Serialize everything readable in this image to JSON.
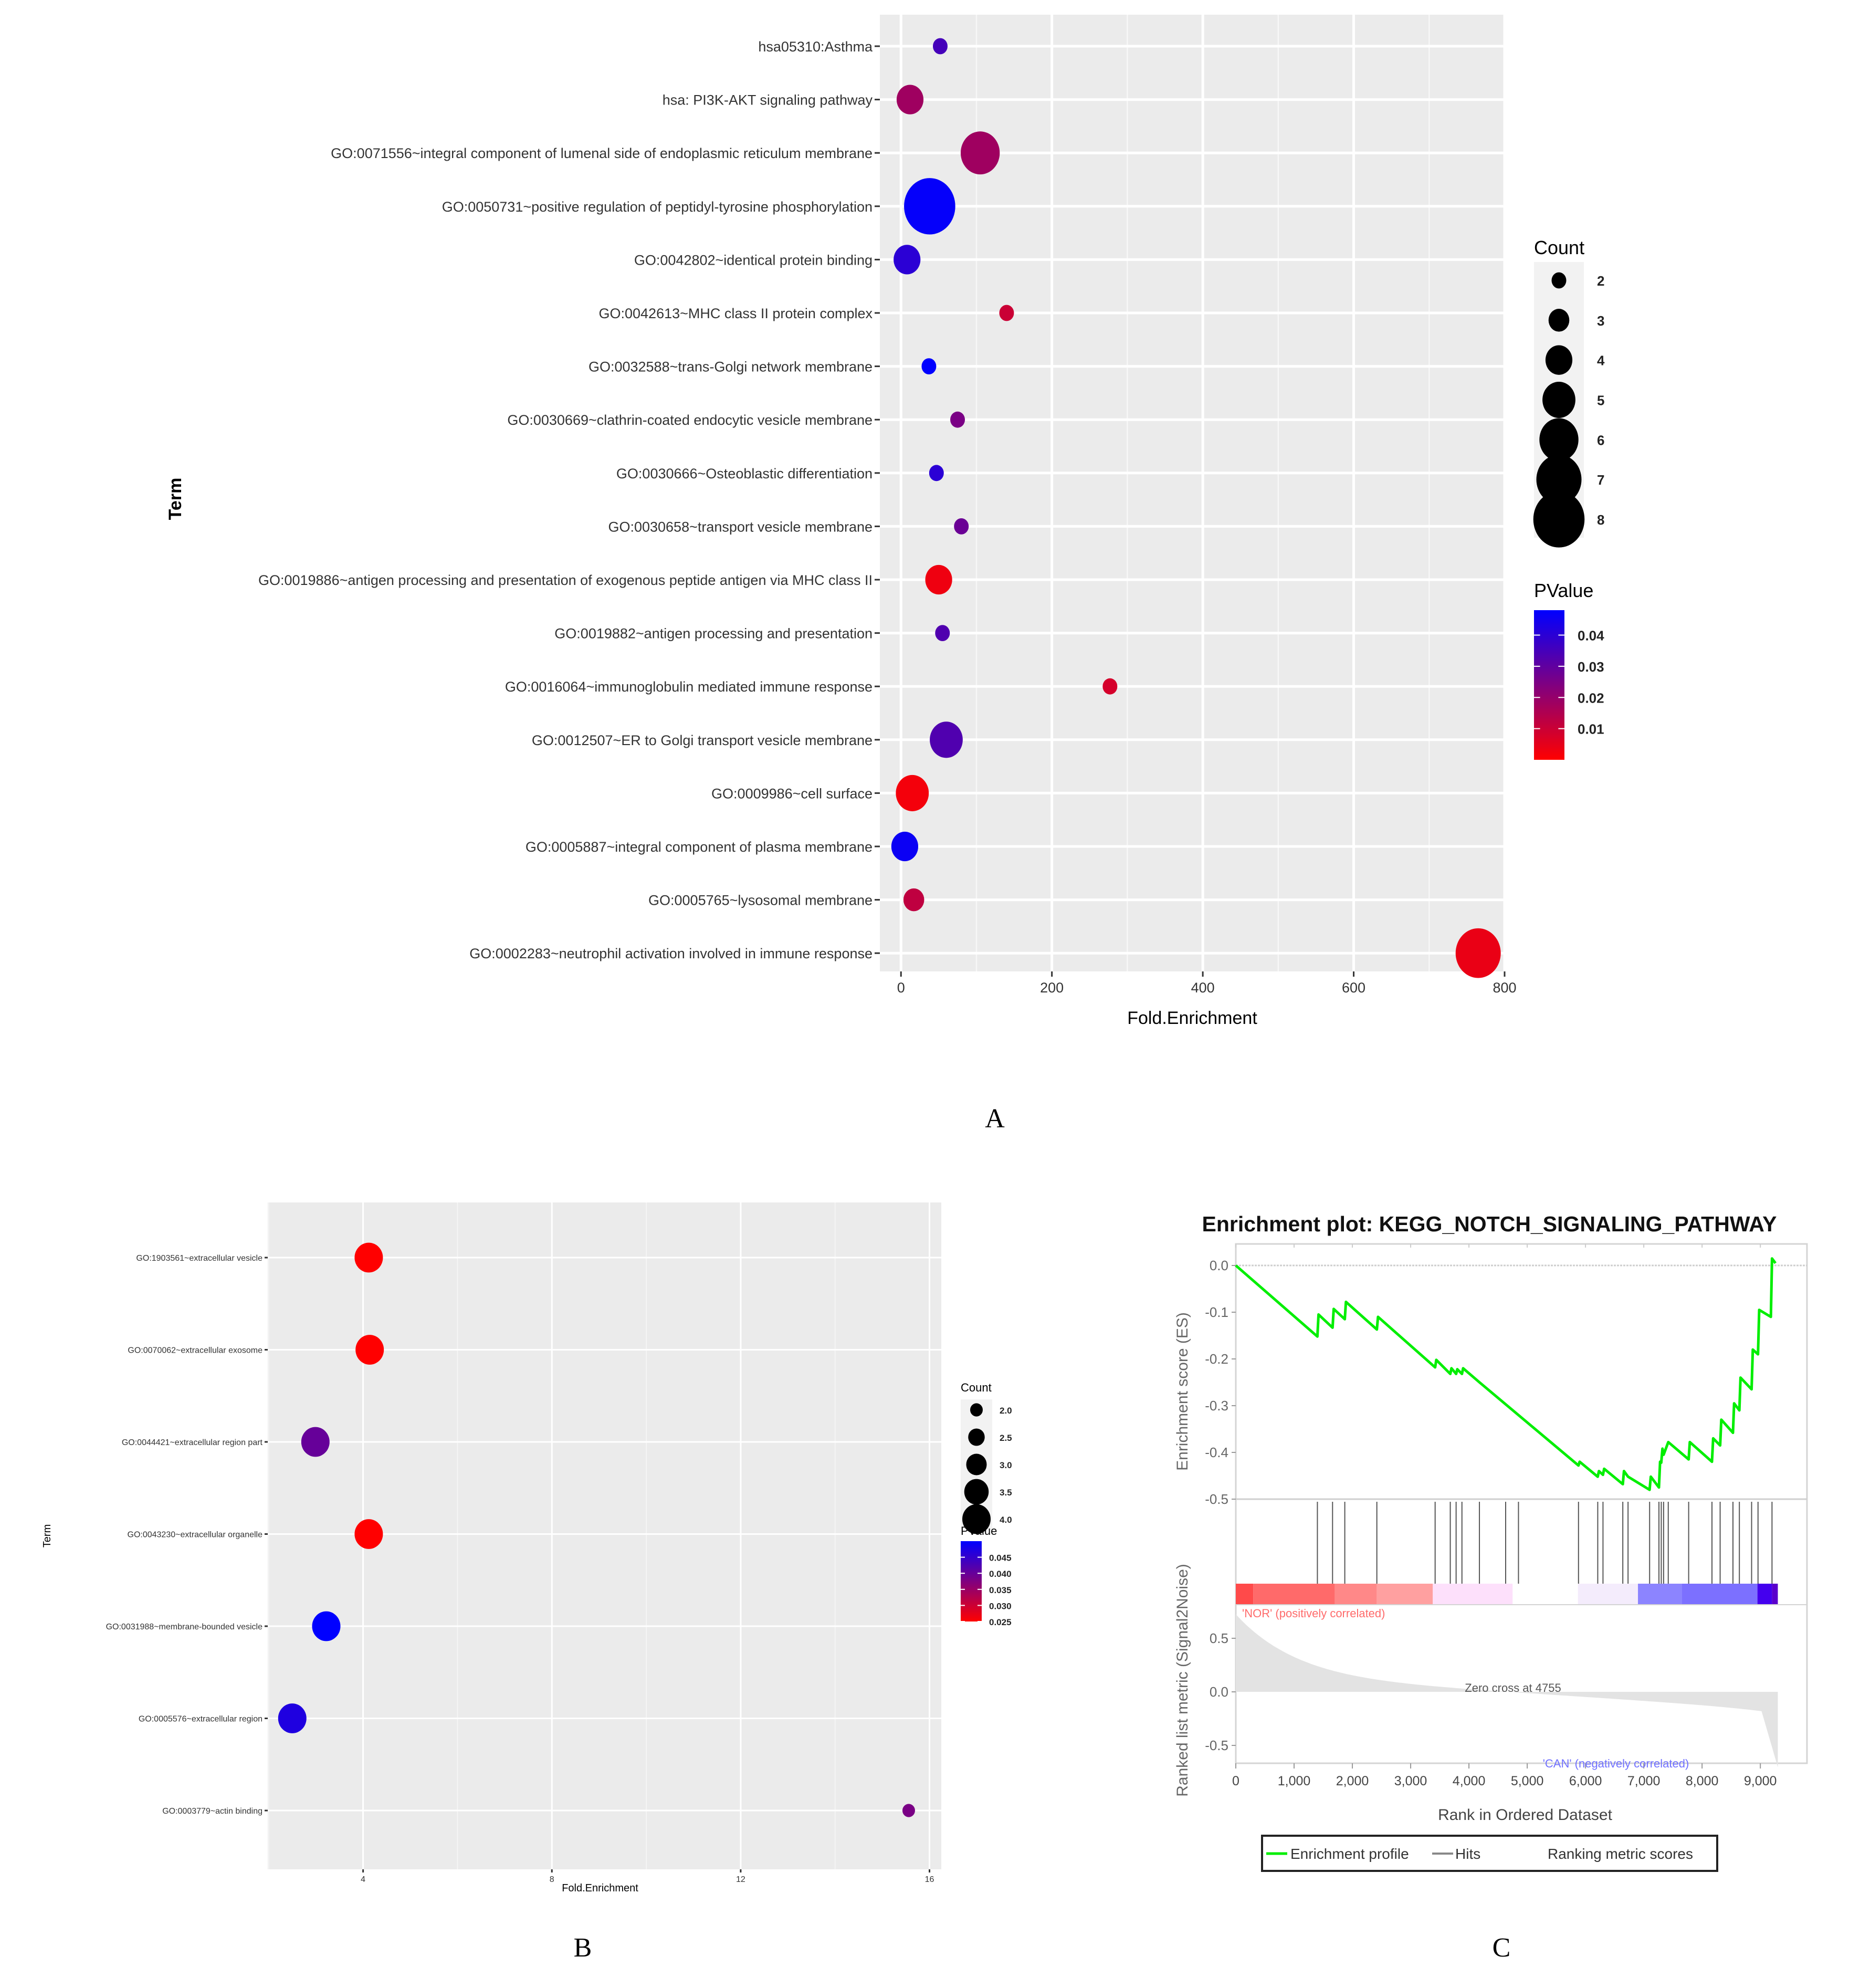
{
  "panel_labels": {
    "a": "A",
    "b": "B",
    "c": "C"
  },
  "chart_data": [
    {
      "id": "A",
      "type": "scatter",
      "subtype": "bubble",
      "title": "",
      "xlabel": "Fold.Enrichment",
      "ylabel": "Term",
      "xlim": [
        -28,
        800
      ],
      "xticks": [
        0,
        200,
        400,
        600,
        800
      ],
      "grid": true,
      "points": [
        {
          "term": "hsa05310:Asthma",
          "fold_enrichment": 52,
          "count": 2,
          "pvalue": 0.035
        },
        {
          "term": "hsa: PI3K-AKT signaling pathway",
          "fold_enrichment": 12,
          "count": 4,
          "pvalue": 0.018
        },
        {
          "term": "GO:0071556~integral component of lumenal side of endoplasmic reticulum membrane",
          "fold_enrichment": 105,
          "count": 6,
          "pvalue": 0.018
        },
        {
          "term": "GO:0050731~positive regulation of peptidyl-tyrosine phosphorylation",
          "fold_enrichment": 38,
          "count": 8,
          "pvalue": 0.047
        },
        {
          "term": "GO:0042802~identical protein binding",
          "fold_enrichment": 8,
          "count": 4,
          "pvalue": 0.04
        },
        {
          "term": "GO:0042613~MHC class II protein complex",
          "fold_enrichment": 140,
          "count": 2,
          "pvalue": 0.01
        },
        {
          "term": "GO:0032588~trans-Golgi network membrane",
          "fold_enrichment": 37,
          "count": 2,
          "pvalue": 0.048
        },
        {
          "term": "GO:0030669~clathrin-coated endocytic vesicle membrane",
          "fold_enrichment": 75,
          "count": 2,
          "pvalue": 0.025
        },
        {
          "term": "GO:0030666~Osteoblastic differentiation",
          "fold_enrichment": 47,
          "count": 2,
          "pvalue": 0.04
        },
        {
          "term": "GO:0030658~transport vesicle membrane",
          "fold_enrichment": 80,
          "count": 2,
          "pvalue": 0.028
        },
        {
          "term": "GO:0019886~antigen processing and presentation of exogenous peptide antigen via MHC class II",
          "fold_enrichment": 50,
          "count": 4,
          "pvalue": 0.003
        },
        {
          "term": "GO:0019882~antigen processing and presentation",
          "fold_enrichment": 55,
          "count": 2,
          "pvalue": 0.033
        },
        {
          "term": "GO:0016064~immunoglobulin mediated immune response",
          "fold_enrichment": 277,
          "count": 2,
          "pvalue": 0.008
        },
        {
          "term": "GO:0012507~ER to Golgi transport vesicle membrane",
          "fold_enrichment": 60,
          "count": 5,
          "pvalue": 0.033
        },
        {
          "term": "GO:0009986~cell surface",
          "fold_enrichment": 15,
          "count": 5,
          "pvalue": 0.002
        },
        {
          "term": "GO:0005887~integral component of plasma membrane",
          "fold_enrichment": 5,
          "count": 4,
          "pvalue": 0.046
        },
        {
          "term": "GO:0005765~lysosomal membrane",
          "fold_enrichment": 17,
          "count": 3,
          "pvalue": 0.012
        },
        {
          "term": "GO:0002283~neutrophil activation involved in immune response",
          "fold_enrichment": 765,
          "count": 7,
          "pvalue": 0.004
        }
      ],
      "legend": {
        "placement": "right",
        "size_title": "Count",
        "size_values": [
          2,
          3,
          4,
          5,
          6,
          7,
          8
        ],
        "color_title": "PValue",
        "color_range": [
          0.0,
          0.048
        ],
        "color_ticks": [
          0.04,
          0.03,
          0.02,
          0.01
        ],
        "color_low": "#ff0000",
        "color_high": "#0000ff"
      },
      "colors": {
        "panel_bg": "#ebebeb",
        "grid": "#ffffff"
      }
    },
    {
      "id": "B",
      "type": "scatter",
      "subtype": "bubble",
      "title": "",
      "xlabel": "Fold.Enrichment",
      "ylabel": "Term",
      "xlim": [
        1.98,
        16.25
      ],
      "xticks": [
        4,
        8,
        12,
        16
      ],
      "grid": true,
      "points": [
        {
          "term": "GO:1903561~extracellular vesicle",
          "fold_enrichment": 4.12,
          "count": 4,
          "pvalue": 0.025
        },
        {
          "term": "GO:0070062~extracellular exosome",
          "fold_enrichment": 4.14,
          "count": 4,
          "pvalue": 0.025
        },
        {
          "term": "GO:0044421~extracellular region part",
          "fold_enrichment": 2.99,
          "count": 4,
          "pvalue": 0.04
        },
        {
          "term": "GO:0043230~extracellular organelle",
          "fold_enrichment": 4.12,
          "count": 4,
          "pvalue": 0.025
        },
        {
          "term": "GO:0031988~membrane-bounded vesicle",
          "fold_enrichment": 3.22,
          "count": 4,
          "pvalue": 0.05
        },
        {
          "term": "GO:0005576~extracellular region",
          "fold_enrichment": 2.5,
          "count": 4,
          "pvalue": 0.047
        },
        {
          "term": "GO:0003779~actin binding",
          "fold_enrichment": 15.56,
          "count": 2,
          "pvalue": 0.038
        }
      ],
      "legend": {
        "placement": "right",
        "size_title": "Count",
        "size_values": [
          "2.0",
          "2.5",
          "3.0",
          "3.5",
          "4.0"
        ],
        "color_title": "PValue",
        "color_range": [
          0.025,
          0.05
        ],
        "color_ticks": [
          "0.045",
          "0.040",
          "0.035",
          "0.030",
          "0.025"
        ],
        "color_low": "#ff0000",
        "color_high": "#0000ff"
      },
      "colors": {
        "panel_bg": "#ebebeb",
        "grid": "#ffffff"
      }
    },
    {
      "id": "C",
      "type": "line",
      "subtype": "gsea-enrichment",
      "title": "Enrichment plot: KEGG_NOTCH_SIGNALING_PATHWAY",
      "xlabel": "Rank in Ordered Dataset",
      "ylabel_top": "Enrichment score (ES)",
      "ylabel_bottom": "Ranked list metric (Signal2Noise)",
      "xlim": [
        0,
        9800
      ],
      "xticks": [
        "0",
        "1,000",
        "2,000",
        "3,000",
        "4,000",
        "5,000",
        "6,000",
        "7,000",
        "8,000",
        "9,000"
      ],
      "xtick_values": [
        0,
        1000,
        2000,
        3000,
        4000,
        5000,
        6000,
        7000,
        8000,
        9000
      ],
      "es_ylim": [
        -0.5,
        0.03
      ],
      "es_yticks": [
        "0.0",
        "-0.1",
        "-0.2",
        "-0.3",
        "-0.4",
        "-0.5"
      ],
      "es_ytick_values": [
        0.0,
        -0.1,
        -0.2,
        -0.3,
        -0.4,
        -0.5
      ],
      "metric_ylim": [
        -0.75,
        0.75
      ],
      "metric_yticks": [
        "0.5",
        "0.0",
        "-0.5"
      ],
      "metric_ytick_values": [
        0.5,
        0.0,
        -0.5
      ],
      "n_genes": 9300,
      "hits": [
        1400,
        1660,
        1870,
        2420,
        3420,
        3680,
        3780,
        3880,
        4180,
        4630,
        4850,
        5880,
        6210,
        6300,
        6640,
        6730,
        7100,
        7260,
        7300,
        7340,
        7420,
        7770,
        8170,
        8310,
        8530,
        8640,
        8850,
        8960,
        9200
      ],
      "es_curve": [
        [
          0,
          0.0
        ],
        [
          1400,
          -0.152
        ],
        [
          1420,
          -0.105
        ],
        [
          1660,
          -0.133
        ],
        [
          1680,
          -0.093
        ],
        [
          1870,
          -0.115
        ],
        [
          1890,
          -0.078
        ],
        [
          2420,
          -0.137
        ],
        [
          2440,
          -0.11
        ],
        [
          3420,
          -0.218
        ],
        [
          3440,
          -0.202
        ],
        [
          3680,
          -0.232
        ],
        [
          3700,
          -0.22
        ],
        [
          3780,
          -0.232
        ],
        [
          3800,
          -0.222
        ],
        [
          3880,
          -0.232
        ],
        [
          3900,
          -0.22
        ],
        [
          4180,
          -0.25
        ],
        [
          5880,
          -0.428
        ],
        [
          5900,
          -0.42
        ],
        [
          6210,
          -0.452
        ],
        [
          6230,
          -0.44
        ],
        [
          6300,
          -0.448
        ],
        [
          6320,
          -0.435
        ],
        [
          6640,
          -0.468
        ],
        [
          6660,
          -0.44
        ],
        [
          6730,
          -0.452
        ],
        [
          7100,
          -0.48
        ],
        [
          7120,
          -0.452
        ],
        [
          7260,
          -0.475
        ],
        [
          7280,
          -0.42
        ],
        [
          7300,
          -0.422
        ],
        [
          7320,
          -0.392
        ],
        [
          7340,
          -0.405
        ],
        [
          7420,
          -0.378
        ],
        [
          7770,
          -0.415
        ],
        [
          7790,
          -0.378
        ],
        [
          8170,
          -0.42
        ],
        [
          8190,
          -0.37
        ],
        [
          8310,
          -0.385
        ],
        [
          8330,
          -0.33
        ],
        [
          8530,
          -0.358
        ],
        [
          8550,
          -0.295
        ],
        [
          8640,
          -0.31
        ],
        [
          8660,
          -0.24
        ],
        [
          8850,
          -0.265
        ],
        [
          8870,
          -0.18
        ],
        [
          8960,
          -0.19
        ],
        [
          8980,
          -0.095
        ],
        [
          9180,
          -0.11
        ],
        [
          9200,
          0.015
        ],
        [
          9260,
          0.005
        ]
      ],
      "zero_cross_label": "Zero cross at 4755",
      "positive_label": "'NOR' (positively correlated)",
      "negative_label": "'CAN' (negatively correlated)",
      "heatmap_segments": [
        {
          "to": 300,
          "color": "#ff4a4a"
        },
        {
          "to": 1700,
          "color": "#ff6a6a"
        },
        {
          "to": 2420,
          "color": "#ff8888"
        },
        {
          "to": 3380,
          "color": "#ffa0a0"
        },
        {
          "to": 4750,
          "color": "#fde0fb"
        },
        {
          "to": 5870,
          "color": "#ffffff"
        },
        {
          "to": 6900,
          "color": "#f4ecfc"
        },
        {
          "to": 7650,
          "color": "#8c84ff"
        },
        {
          "to": 8950,
          "color": "#7c70ff"
        },
        {
          "to": 9200,
          "color": "#4400ee"
        },
        {
          "to": 9300,
          "color": "#5a00cc"
        }
      ],
      "legend": {
        "placement": "bottom",
        "items": [
          {
            "label": "Enrichment profile",
            "color": "#00ee00",
            "style": "line"
          },
          {
            "label": "Hits",
            "color": "#888888",
            "style": "line"
          },
          {
            "label": "Ranking metric scores",
            "color": "#dddddd",
            "style": "none"
          }
        ]
      },
      "colors": {
        "es_line": "#00ee00",
        "hit": "#555555",
        "metric_fill": "#e3e3e3",
        "pos_label": "#ff6b6b",
        "neg_label": "#7070ff",
        "axis_text": "#666666"
      }
    }
  ]
}
